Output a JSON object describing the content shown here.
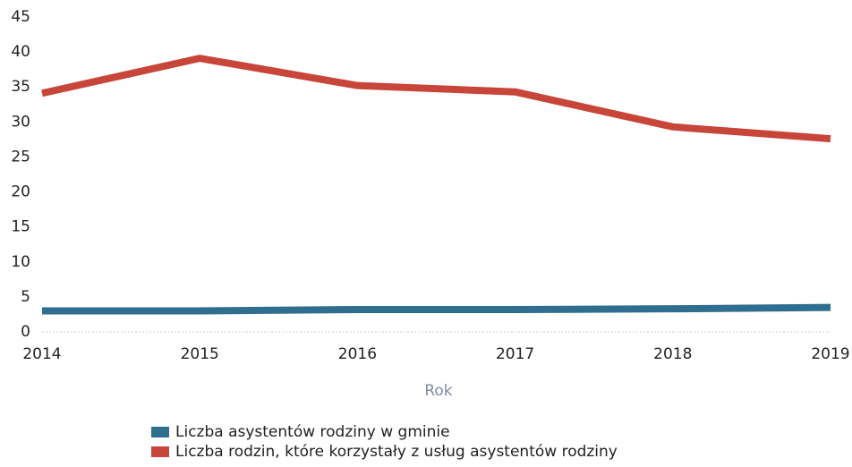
{
  "chart_data": {
    "type": "line",
    "x_label": "Rok",
    "x": [
      2014,
      2015,
      2016,
      2017,
      2018,
      2019
    ],
    "xlim": [
      2014,
      2019
    ],
    "xticks": [
      2014,
      2015,
      2016,
      2017,
      2018,
      2019
    ],
    "ylim": [
      0,
      45
    ],
    "yticks": [
      0,
      5,
      10,
      15,
      20,
      25,
      30,
      35,
      40,
      45
    ],
    "grid": false,
    "legend": "bottom",
    "series": [
      {
        "name": "Liczba asystentów rodziny w gminie",
        "color": "#2f6e8e",
        "values": [
          3,
          3,
          3.2,
          3.2,
          3.3,
          3.5
        ]
      },
      {
        "name": "Liczba rodzin, które korzystały z usług asystentów rodziny",
        "color": "#c8453a",
        "values": [
          34.1,
          39.1,
          35.2,
          34.3,
          29.3,
          27.6
        ]
      }
    ]
  }
}
